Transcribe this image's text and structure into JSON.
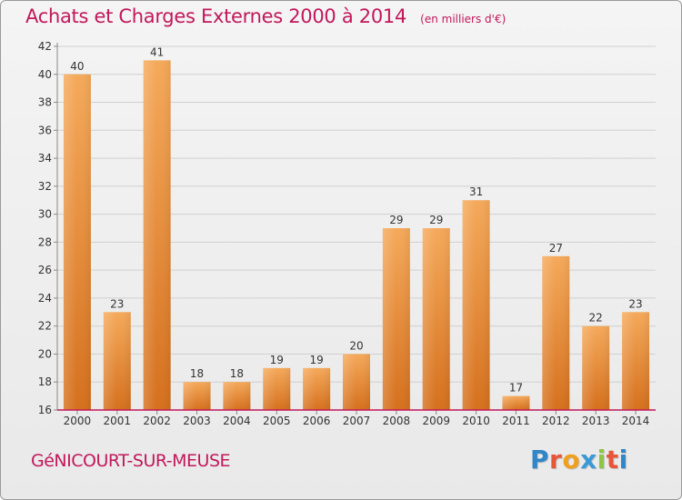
{
  "title": "Achats et Charges Externes 2000 à 2014",
  "unit_note": "(en milliers d'€)",
  "commune": "GéNICOURT-SUR-MEUSE",
  "brand": {
    "name": "Proxiti",
    "colors": [
      "#2f86c8",
      "#e8563a",
      "#f0a020",
      "#3b9ad6",
      "#8cc63f",
      "#e8563a"
    ]
  },
  "colors": {
    "bar_light": "#f5a95a",
    "bar_dark": "#d5701d",
    "title": "#c2185b",
    "axis_line": "#c2185b",
    "grid": "#d0d0d0"
  },
  "chart_data": {
    "type": "bar",
    "categories": [
      "2000",
      "2001",
      "2002",
      "2003",
      "2004",
      "2005",
      "2006",
      "2007",
      "2008",
      "2009",
      "2010",
      "2011",
      "2012",
      "2013",
      "2014"
    ],
    "values": [
      40,
      23,
      41,
      18,
      18,
      19,
      19,
      20,
      29,
      29,
      31,
      17,
      27,
      22,
      23
    ],
    "data_labels": [
      "40",
      "23",
      "41",
      "18",
      "18",
      "19",
      "19",
      "20",
      "29",
      "29",
      "31",
      "17",
      "27",
      "22",
      "23"
    ],
    "title": "Achats et Charges Externes 2000 à 2014",
    "ylim": [
      16,
      42
    ],
    "yticks": [
      "16",
      "18",
      "20",
      "22",
      "24",
      "26",
      "28",
      "30",
      "32",
      "34",
      "36",
      "38",
      "40",
      "42"
    ],
    "grid": true,
    "legend": "none"
  }
}
